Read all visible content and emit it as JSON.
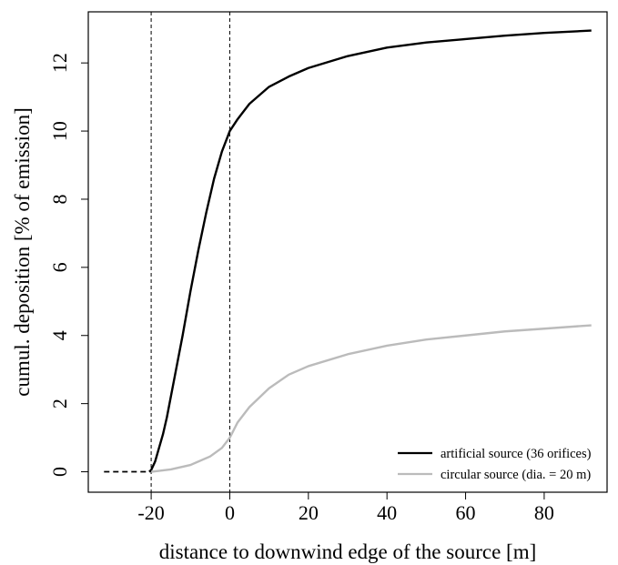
{
  "chart_data": {
    "type": "line",
    "title": "",
    "xlabel": "distance to downwind edge of the source [m]",
    "ylabel": "cumul. deposition [% of emission]",
    "xlim": [
      -36,
      96
    ],
    "ylim": [
      -0.6,
      13.5
    ],
    "xticks": [
      -20,
      0,
      20,
      40,
      60,
      80
    ],
    "yticks": [
      0,
      2,
      4,
      6,
      8,
      10,
      12
    ],
    "xtick_labels": [
      "-20",
      "0",
      "20",
      "40",
      "60",
      "80"
    ],
    "ytick_labels": [
      "0",
      "2",
      "4",
      "6",
      "8",
      "10",
      "12"
    ],
    "grid": false,
    "legend_position": "bottom-right",
    "vlines": [
      -20,
      0
    ],
    "series": [
      {
        "name": "artificial source (36 orifices)",
        "color": "#000000",
        "x": [
          -32,
          -28,
          -24,
          -20.5,
          -20,
          -19,
          -18,
          -17,
          -16,
          -14,
          -12,
          -10,
          -8,
          -6,
          -4,
          -2,
          0,
          2,
          5,
          10,
          15,
          20,
          30,
          40,
          50,
          60,
          70,
          80,
          92
        ],
        "y": [
          0,
          0,
          0,
          0,
          0.05,
          0.3,
          0.7,
          1.1,
          1.6,
          2.8,
          4.0,
          5.3,
          6.5,
          7.6,
          8.6,
          9.4,
          10.0,
          10.35,
          10.8,
          11.3,
          11.6,
          11.85,
          12.2,
          12.45,
          12.6,
          12.7,
          12.8,
          12.88,
          12.95
        ],
        "dashed_until_x": -20
      },
      {
        "name": "circular source (dia. = 20 m)",
        "color": "#bbbbbb",
        "x": [
          -20,
          -15,
          -10,
          -5,
          -2,
          0,
          2,
          5,
          10,
          15,
          20,
          30,
          40,
          50,
          60,
          70,
          80,
          92
        ],
        "y": [
          0,
          0.07,
          0.2,
          0.45,
          0.7,
          1.0,
          1.45,
          1.9,
          2.45,
          2.85,
          3.1,
          3.45,
          3.7,
          3.88,
          4.0,
          4.12,
          4.2,
          4.3
        ]
      }
    ]
  }
}
